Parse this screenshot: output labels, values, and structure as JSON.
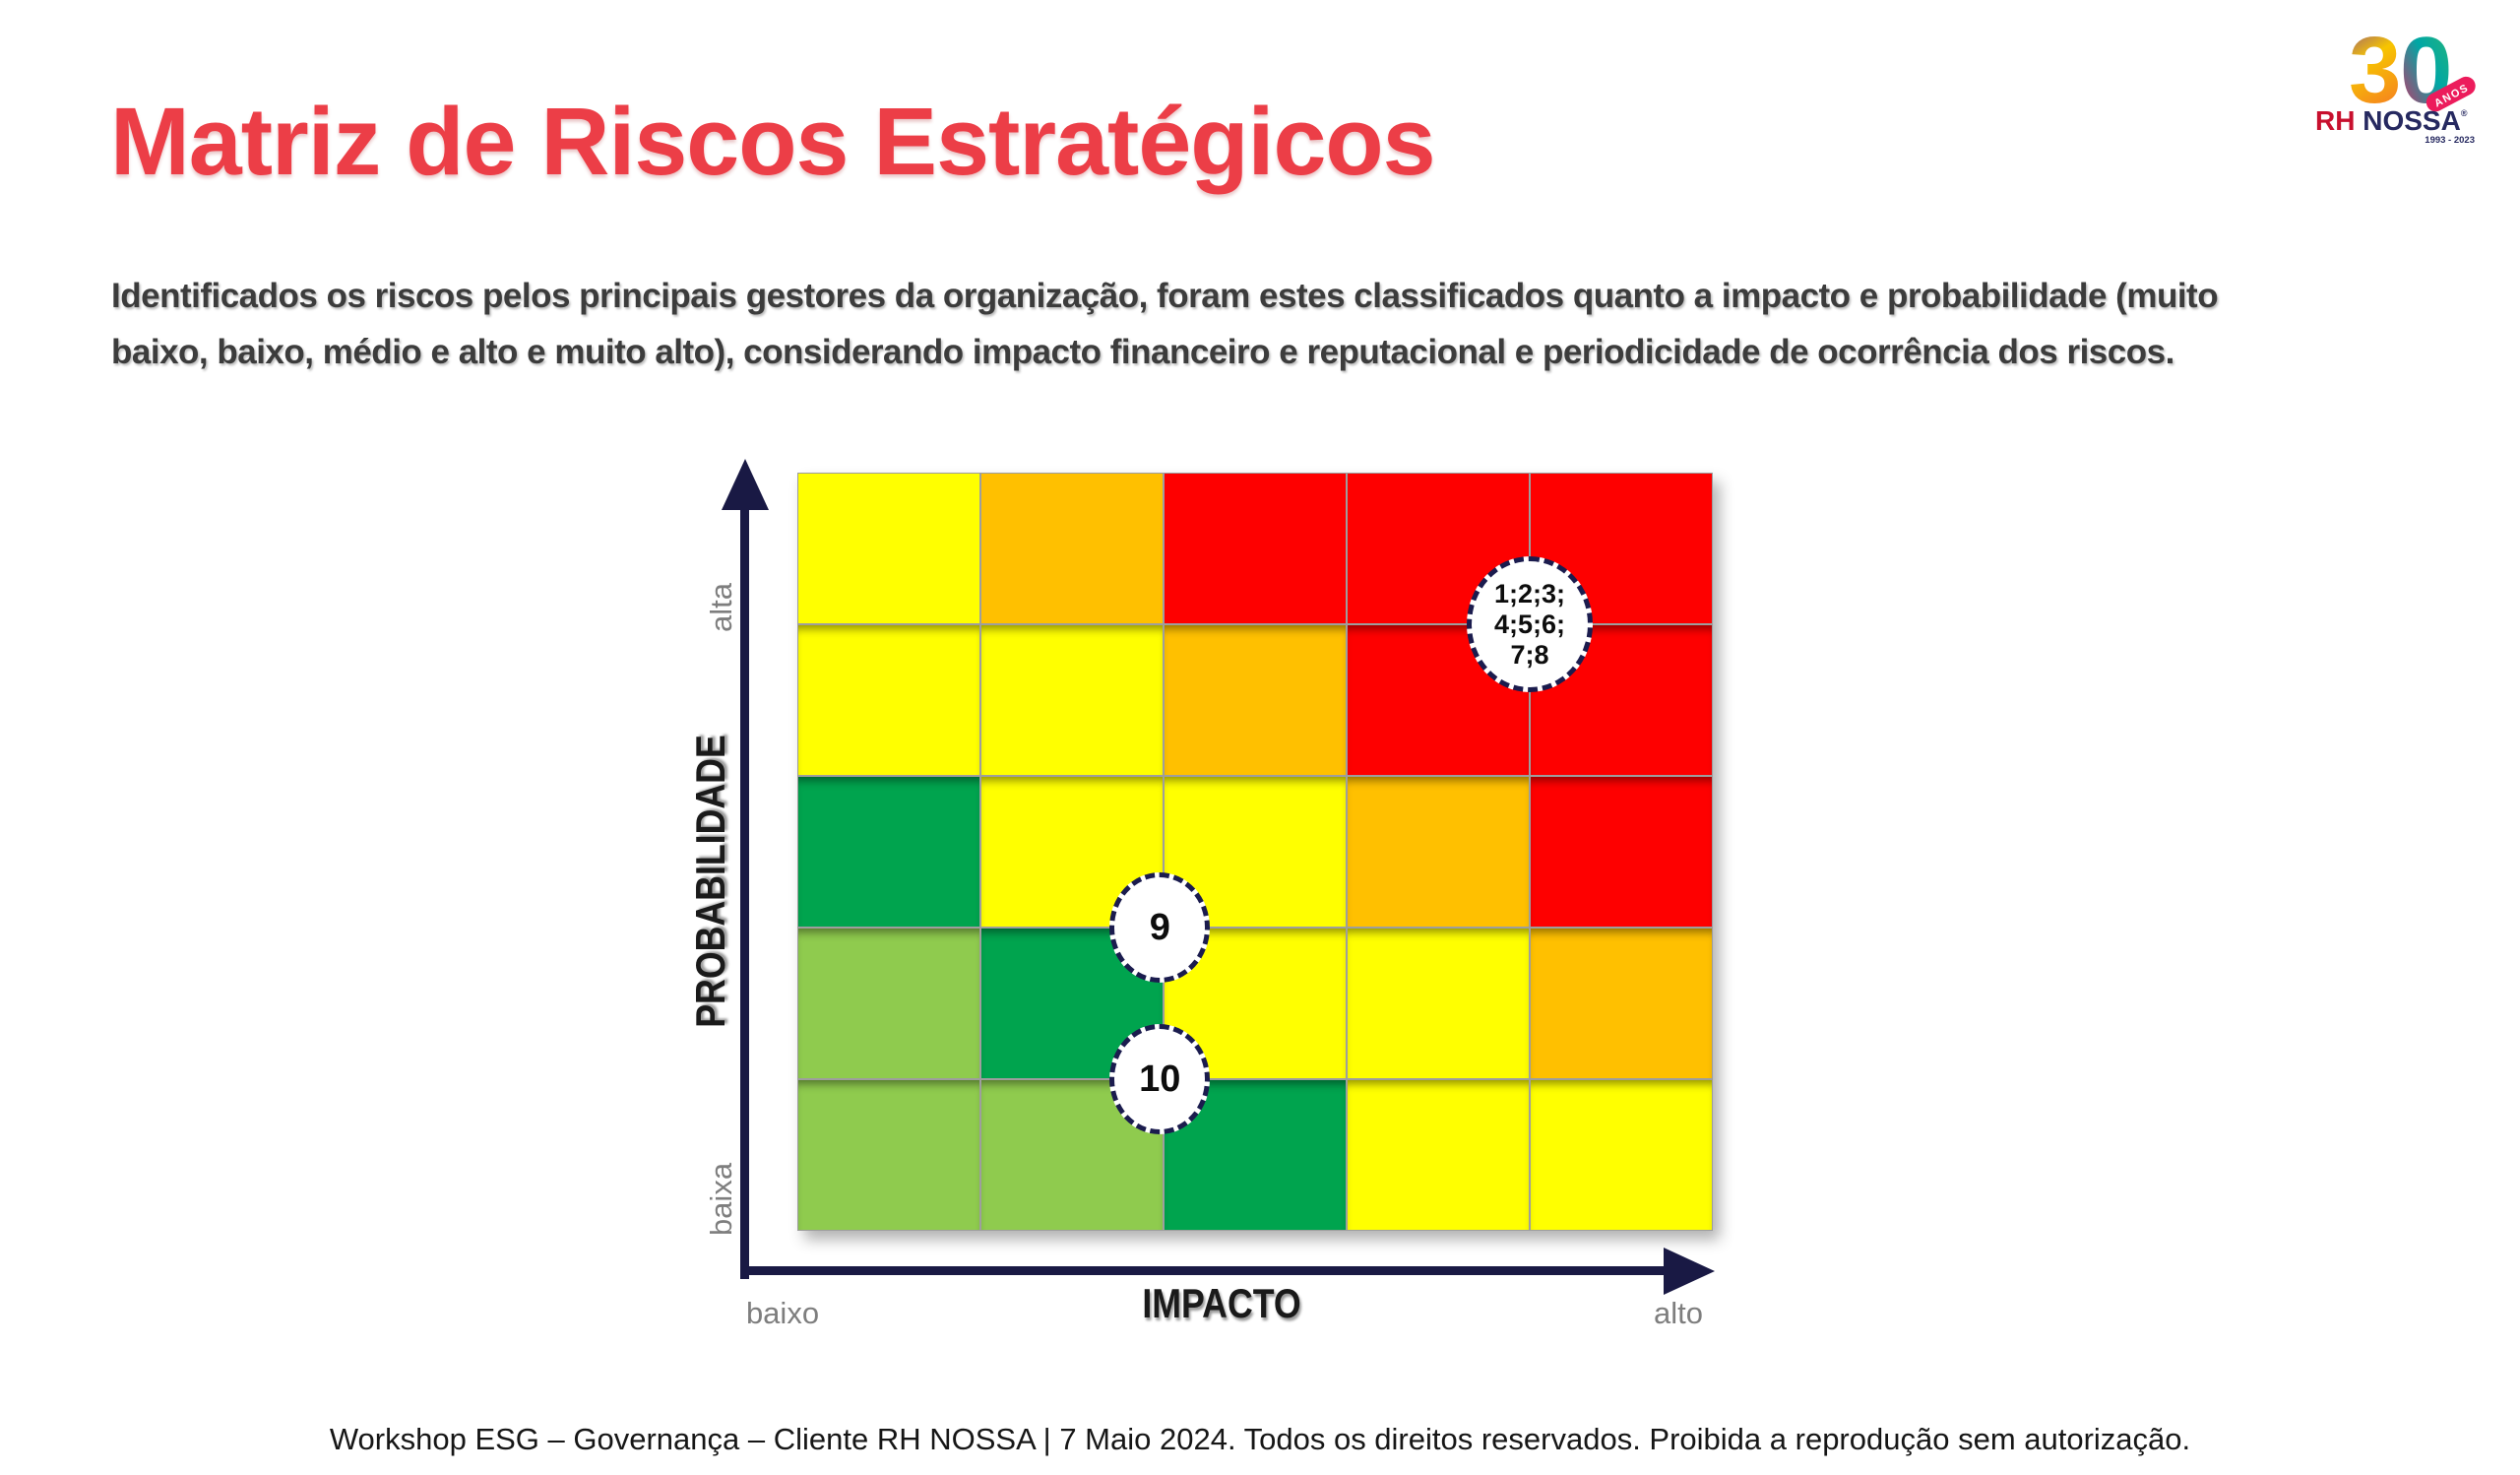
{
  "slide": {
    "title": "Matriz de Riscos Estratégicos",
    "intro_lines": [
      "Identificados os riscos pelos principais gestores da organização, foram estes classificados quanto a impacto e probabilidade (muito",
      "baixo, baixo, médio e alto e muito alto), considerando impacto financeiro e reputacional e periodicidade de ocorrência dos riscos."
    ],
    "footer": "Workshop ESG – Governança – Cliente RH NOSSA | 7 Maio 2024. Todos os direitos reservados. Proibida a reprodução sem autorização."
  },
  "theme": {
    "title_red": "#EC3E47",
    "body_text": "#3C3C3C",
    "axis_navy": "#191944",
    "tick_gray": "#7E7E7E",
    "grid_line_gray": "#9E9E9E",
    "background": "#FFFFFF"
  },
  "logo": {
    "anniversary": "30",
    "anos_label": "ANOS",
    "brand_rh": "RH",
    "brand_nossa": "NOSSA",
    "registered": "®",
    "years": "1993 - 2023"
  },
  "chart_data": {
    "type": "heatmap",
    "title": "Matriz de Riscos Estratégicos",
    "x_axis": {
      "label": "IMPACTO",
      "min_label": "baixo",
      "max_label": "alto"
    },
    "y_axis": {
      "label": "PROBABILIDADE",
      "min_label": "baixa",
      "max_label": "alta"
    },
    "grid": {
      "rows": 5,
      "cols": 5
    },
    "cells": [
      [
        "yellow",
        "orange",
        "red",
        "red",
        "red"
      ],
      [
        "yellow",
        "yellow",
        "orange",
        "red",
        "red"
      ],
      [
        "green",
        "yellow",
        "yellow",
        "orange",
        "red"
      ],
      [
        "light-green",
        "green",
        "yellow",
        "yellow",
        "orange"
      ],
      [
        "light-green",
        "light-green",
        "green",
        "yellow",
        "yellow"
      ]
    ],
    "level_colors": {
      "yellow": "#FFFF00",
      "orange": "#FFC000",
      "red": "#FE0000",
      "green": "#00A44E",
      "light-green": "#8FCB4E"
    },
    "risk_markers": [
      {
        "id": "risks-1-8",
        "lines": [
          "1;2;3;",
          "4;5;6;",
          "7;8"
        ],
        "size": "lg",
        "x_frac": 0.8,
        "y_frac": 0.2,
        "impact": "alto",
        "probabilidade": "alta"
      },
      {
        "id": "risk-9",
        "lines": [
          "9"
        ],
        "size": "sm",
        "x_frac": 0.396,
        "y_frac": 0.6,
        "impact": "médio",
        "probabilidade": "médio"
      },
      {
        "id": "risk-10",
        "lines": [
          "10"
        ],
        "size": "sm",
        "x_frac": 0.396,
        "y_frac": 0.8,
        "impact": "médio",
        "probabilidade": "baixa"
      }
    ],
    "legend": false
  }
}
